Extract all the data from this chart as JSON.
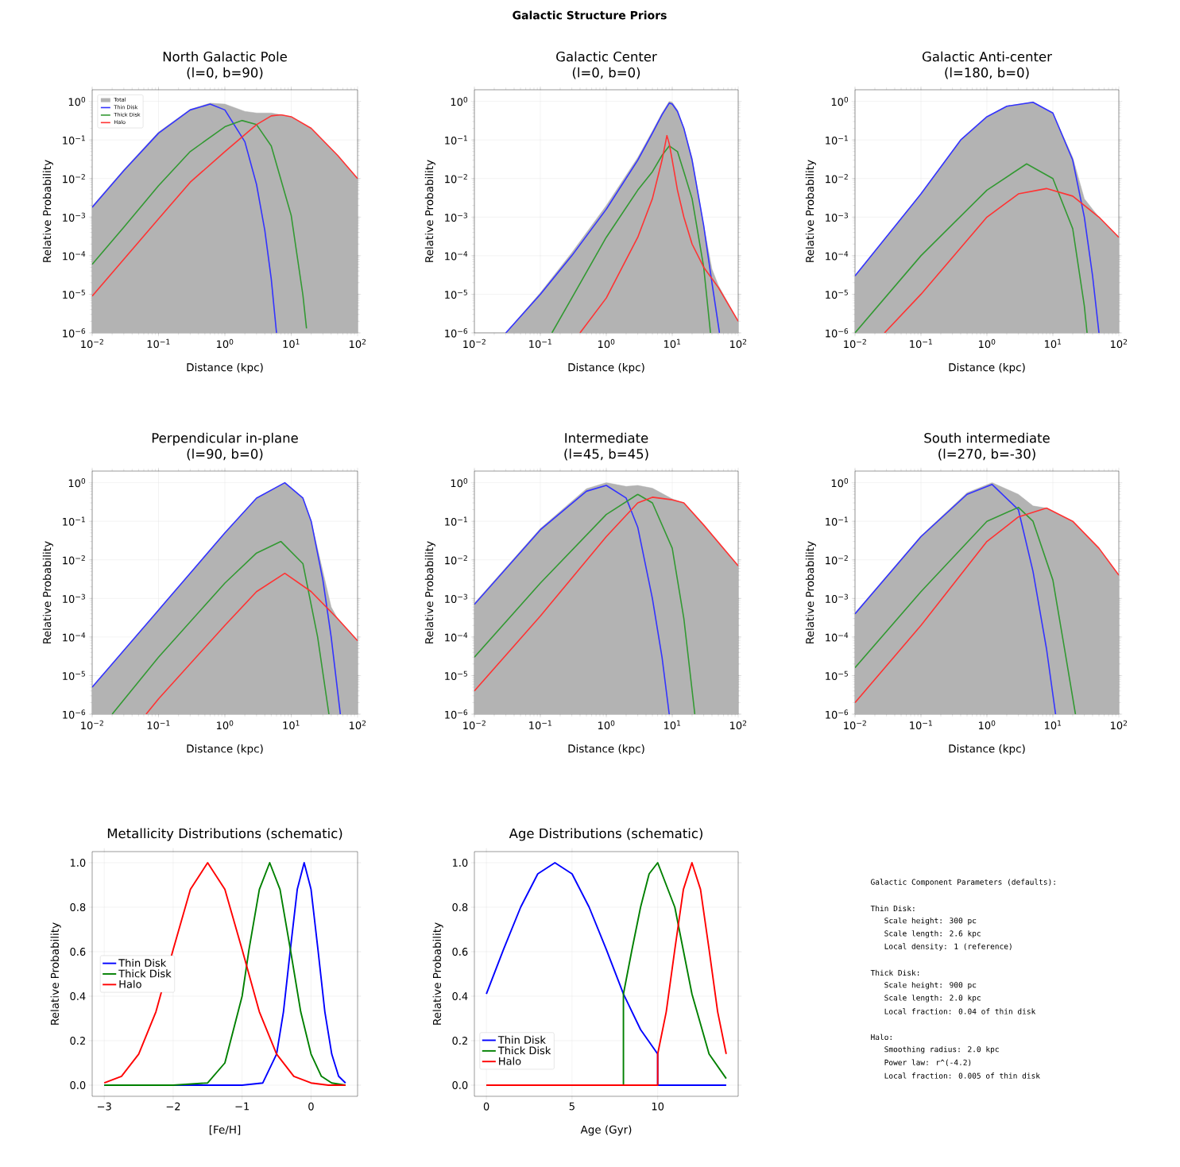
{
  "chart_data": [
    {
      "type": "other",
      "title": "Galactic Structure Priors"
    },
    {
      "type": "line",
      "title": "North Galactic Pole",
      "subtitle": "(l=0, b=90)",
      "xlabel": "Distance (kpc)",
      "ylabel": "Relative Probability",
      "log": "xy",
      "grid": true,
      "legend": "top left",
      "xlim": [
        0.01,
        100
      ],
      "ylim": [
        1e-06,
        2
      ],
      "xticks": [
        {
          "value": 0.01,
          "label": "10$^{−2}$"
        },
        {
          "value": 0.1,
          "label": "10$^{−1}$"
        },
        {
          "value": 1,
          "label": "10$^{0}$"
        },
        {
          "value": 10,
          "label": "10$^{1}$"
        },
        {
          "value": 100,
          "label": "10$^{2}$"
        }
      ],
      "yticks": [
        {
          "value": 1e-06,
          "label": "10$^{−6}$"
        },
        {
          "value": 1e-05,
          "label": "10$^{−5}$"
        },
        {
          "value": 0.0001,
          "label": "10$^{−4}$"
        },
        {
          "value": 0.001,
          "label": "10$^{−3}$"
        },
        {
          "value": 0.01,
          "label": "10$^{−2}$"
        },
        {
          "value": 0.1,
          "label": "10$^{−1}$"
        },
        {
          "value": 1,
          "label": "10$^{0}$"
        }
      ],
      "series": [
        {
          "name": "Total",
          "type": "area",
          "color": "#b3b3b3",
          "x": [
            0.01,
            0.03,
            0.1,
            0.3,
            0.6,
            1,
            2,
            3,
            5,
            7,
            10,
            20,
            50,
            100
          ],
          "values": [
            0.0019,
            0.017,
            0.16,
            0.62,
            0.9,
            0.85,
            0.55,
            0.5,
            0.5,
            0.45,
            0.4,
            0.2,
            0.04,
            0.01
          ]
        },
        {
          "name": "Thin Disk",
          "color": "#3333ff",
          "x": [
            0.01,
            0.03,
            0.1,
            0.3,
            0.6,
            1,
            2,
            3,
            4,
            5,
            6
          ],
          "values": [
            0.0018,
            0.016,
            0.15,
            0.6,
            0.85,
            0.6,
            0.09,
            0.007,
            0.00045,
            2.5e-05,
            1e-06
          ]
        },
        {
          "name": "Thick Disk",
          "color": "#339933",
          "x": [
            0.01,
            0.03,
            0.1,
            0.3,
            1,
            1.8,
            3,
            5,
            10,
            15,
            17
          ],
          "values": [
            6e-05,
            0.00055,
            0.0065,
            0.05,
            0.22,
            0.32,
            0.25,
            0.07,
            0.0011,
            9.5e-06,
            1.3e-06
          ]
        },
        {
          "name": "Halo",
          "color": "#ff3333",
          "x": [
            0.01,
            0.1,
            0.3,
            1,
            3,
            5,
            7,
            10,
            20,
            50,
            100
          ],
          "values": [
            9e-06,
            0.0009,
            0.008,
            0.05,
            0.25,
            0.42,
            0.45,
            0.4,
            0.2,
            0.04,
            0.01
          ]
        }
      ]
    },
    {
      "type": "line",
      "title": "Galactic Center",
      "subtitle": "(l=0, b=0)",
      "xlabel": "Distance (kpc)",
      "ylabel": "Relative Probability",
      "log": "xy",
      "grid": true,
      "xlim": [
        0.01,
        100
      ],
      "ylim": [
        1e-06,
        2
      ],
      "xticks": [
        {
          "value": 0.01,
          "label": "10$^{−2}$"
        },
        {
          "value": 0.1,
          "label": "10$^{−1}$"
        },
        {
          "value": 1,
          "label": "10$^{0}$"
        },
        {
          "value": 10,
          "label": "10$^{1}$"
        },
        {
          "value": 100,
          "label": "10$^{2}$"
        }
      ],
      "yticks": [
        {
          "value": 1e-06,
          "label": "10$^{−6}$"
        },
        {
          "value": 1e-05,
          "label": "10$^{−5}$"
        },
        {
          "value": 0.0001,
          "label": "10$^{−4}$"
        },
        {
          "value": 0.001,
          "label": "10$^{−3}$"
        },
        {
          "value": 0.01,
          "label": "10$^{−2}$"
        },
        {
          "value": 0.1,
          "label": "10$^{−1}$"
        },
        {
          "value": 1,
          "label": "10$^{0}$"
        }
      ],
      "series": [
        {
          "type": "area",
          "color": "#b3b3b3",
          "x": [
            0.03,
            0.1,
            0.3,
            1,
            3,
            5,
            7,
            9,
            10,
            12,
            15,
            20,
            30,
            40,
            50,
            100
          ],
          "values": [
            1e-06,
            1.1e-05,
            0.00012,
            0.002,
            0.035,
            0.17,
            0.5,
            1.0,
            0.95,
            0.6,
            0.2,
            0.035,
            0.0006,
            4.5e-05,
            1.7e-05,
            2e-06
          ]
        },
        {
          "color": "#3333ff",
          "x": [
            0.03,
            0.1,
            0.3,
            1,
            3,
            5,
            7,
            9,
            10,
            12,
            15,
            20,
            30,
            40,
            52
          ],
          "values": [
            1e-06,
            1e-05,
            0.0001,
            0.0016,
            0.03,
            0.15,
            0.45,
            0.9,
            0.85,
            0.55,
            0.2,
            0.03,
            0.0006,
            2e-05,
            1e-06
          ]
        },
        {
          "color": "#339933",
          "x": [
            0.15,
            0.3,
            1,
            3,
            5,
            7,
            9,
            12,
            15,
            20,
            30,
            38
          ],
          "values": [
            1e-06,
            8e-06,
            0.0003,
            0.005,
            0.015,
            0.04,
            0.07,
            0.05,
            0.015,
            0.003,
            5e-05,
            1e-06
          ]
        },
        {
          "color": "#ff3333",
          "x": [
            0.4,
            1,
            3,
            5,
            7,
            8.3,
            9,
            10,
            12,
            15,
            20,
            30,
            50,
            100
          ],
          "values": [
            1e-06,
            8e-06,
            0.0003,
            0.003,
            0.03,
            0.13,
            0.08,
            0.03,
            0.005,
            0.001,
            0.0002,
            5e-05,
            1.5e-05,
            2e-06
          ]
        }
      ]
    },
    {
      "type": "line",
      "title": "Galactic Anti-center",
      "subtitle": "(l=180, b=0)",
      "xlabel": "Distance (kpc)",
      "ylabel": "Relative Probability",
      "log": "xy",
      "grid": true,
      "xlim": [
        0.01,
        100
      ],
      "ylim": [
        1e-06,
        2
      ],
      "xticks": [
        {
          "value": 0.01,
          "label": "10$^{−2}$"
        },
        {
          "value": 0.1,
          "label": "10$^{−1}$"
        },
        {
          "value": 1,
          "label": "10$^{0}$"
        },
        {
          "value": 10,
          "label": "10$^{1}$"
        },
        {
          "value": 100,
          "label": "10$^{2}$"
        }
      ],
      "yticks": [
        {
          "value": 1e-06,
          "label": "10$^{−6}$"
        },
        {
          "value": 1e-05,
          "label": "10$^{−5}$"
        },
        {
          "value": 0.0001,
          "label": "10$^{−4}$"
        },
        {
          "value": 0.001,
          "label": "10$^{−3}$"
        },
        {
          "value": 0.01,
          "label": "10$^{−2}$"
        },
        {
          "value": 0.1,
          "label": "10$^{−1}$"
        },
        {
          "value": 1,
          "label": "10$^{0}$"
        }
      ],
      "series": [
        {
          "type": "area",
          "color": "#b3b3b3",
          "x": [
            0.01,
            0.1,
            0.4,
            1,
            2,
            5,
            10,
            20,
            30,
            40,
            50,
            100
          ],
          "values": [
            3e-05,
            0.004,
            0.1,
            0.4,
            0.75,
            0.97,
            0.5,
            0.035,
            0.003,
            0.0016,
            0.001,
            0.0003
          ]
        },
        {
          "color": "#3333ff",
          "x": [
            0.01,
            0.1,
            0.4,
            1,
            2,
            5,
            10,
            20,
            30,
            40,
            50
          ],
          "values": [
            3e-05,
            0.004,
            0.1,
            0.4,
            0.75,
            0.95,
            0.5,
            0.03,
            0.001,
            3e-05,
            1e-06
          ]
        },
        {
          "color": "#339933",
          "x": [
            0.01,
            0.1,
            1,
            4,
            10,
            20,
            30,
            33
          ],
          "values": [
            1e-06,
            0.0001,
            0.005,
            0.024,
            0.01,
            0.0005,
            5e-06,
            1e-06
          ]
        },
        {
          "color": "#ff3333",
          "x": [
            0.028,
            0.1,
            1,
            3,
            8,
            20,
            50,
            100
          ],
          "values": [
            1e-06,
            1e-05,
            0.001,
            0.004,
            0.0055,
            0.0035,
            0.001,
            0.0003
          ]
        }
      ]
    },
    {
      "type": "line",
      "title": "Perpendicular in-plane",
      "subtitle": "(l=90, b=0)",
      "xlabel": "Distance (kpc)",
      "ylabel": "Relative Probability",
      "log": "xy",
      "grid": true,
      "xlim": [
        0.01,
        100
      ],
      "ylim": [
        1e-06,
        2
      ],
      "xticks": [
        {
          "value": 0.01,
          "label": "10$^{−2}$"
        },
        {
          "value": 0.1,
          "label": "10$^{−1}$"
        },
        {
          "value": 1,
          "label": "10$^{0}$"
        },
        {
          "value": 10,
          "label": "10$^{1}$"
        },
        {
          "value": 100,
          "label": "10$^{2}$"
        }
      ],
      "yticks": [
        {
          "value": 1e-06,
          "label": "10$^{−6}$"
        },
        {
          "value": 1e-05,
          "label": "10$^{−5}$"
        },
        {
          "value": 0.0001,
          "label": "10$^{−4}$"
        },
        {
          "value": 0.001,
          "label": "10$^{−3}$"
        },
        {
          "value": 0.01,
          "label": "10$^{−2}$"
        },
        {
          "value": 0.1,
          "label": "10$^{−1}$"
        },
        {
          "value": 1,
          "label": "10$^{0}$"
        }
      ],
      "series": [
        {
          "type": "area",
          "color": "#b3b3b3",
          "x": [
            0.01,
            0.1,
            1,
            3,
            8,
            15,
            20,
            30,
            40,
            50,
            100
          ],
          "values": [
            5e-06,
            0.0005,
            0.05,
            0.4,
            1.0,
            0.4,
            0.1,
            0.005,
            0.0006,
            0.0003,
            8e-05
          ]
        },
        {
          "color": "#3333ff",
          "x": [
            0.01,
            0.1,
            1,
            3,
            8,
            15,
            20,
            30,
            40,
            55
          ],
          "values": [
            5e-06,
            0.0005,
            0.05,
            0.4,
            1.0,
            0.4,
            0.1,
            0.003,
            0.0001,
            1e-06
          ]
        },
        {
          "color": "#339933",
          "x": [
            0.02,
            0.1,
            1,
            3,
            7,
            15,
            25,
            37
          ],
          "values": [
            1e-06,
            3e-05,
            0.0025,
            0.015,
            0.03,
            0.008,
            0.0001,
            1e-06
          ]
        },
        {
          "color": "#ff3333",
          "x": [
            0.065,
            0.1,
            1,
            3,
            8,
            20,
            50,
            100
          ],
          "values": [
            1e-06,
            2.5e-06,
            0.0002,
            0.0015,
            0.0045,
            0.0015,
            0.0003,
            8e-05
          ]
        }
      ]
    },
    {
      "type": "line",
      "title": "Intermediate",
      "subtitle": "(l=45, b=45)",
      "xlabel": "Distance (kpc)",
      "ylabel": "Relative Probability",
      "log": "xy",
      "grid": true,
      "xlim": [
        0.01,
        100
      ],
      "ylim": [
        1e-06,
        2
      ],
      "xticks": [
        {
          "value": 0.01,
          "label": "10$^{−2}$"
        },
        {
          "value": 0.1,
          "label": "10$^{−1}$"
        },
        {
          "value": 1,
          "label": "10$^{0}$"
        },
        {
          "value": 10,
          "label": "10$^{1}$"
        },
        {
          "value": 100,
          "label": "10$^{2}$"
        }
      ],
      "yticks": [
        {
          "value": 1e-06,
          "label": "10$^{−6}$"
        },
        {
          "value": 1e-05,
          "label": "10$^{−5}$"
        },
        {
          "value": 0.0001,
          "label": "10$^{−4}$"
        },
        {
          "value": 0.001,
          "label": "10$^{−3}$"
        },
        {
          "value": 0.01,
          "label": "10$^{−2}$"
        },
        {
          "value": 0.1,
          "label": "10$^{−1}$"
        },
        {
          "value": 1,
          "label": "10$^{0}$"
        }
      ],
      "series": [
        {
          "type": "area",
          "color": "#b3b3b3",
          "x": [
            0.01,
            0.1,
            0.5,
            1,
            2,
            3,
            5,
            10,
            15,
            30,
            100
          ],
          "values": [
            0.00075,
            0.065,
            0.7,
            1.0,
            0.8,
            0.85,
            0.72,
            0.38,
            0.3,
            0.08,
            0.007
          ]
        },
        {
          "color": "#3333ff",
          "x": [
            0.01,
            0.1,
            0.5,
            1,
            2,
            3,
            5,
            7,
            9
          ],
          "values": [
            0.0007,
            0.06,
            0.6,
            0.85,
            0.4,
            0.07,
            0.001,
            3e-05,
            1e-06
          ]
        },
        {
          "color": "#339933",
          "x": [
            0.01,
            0.1,
            1,
            3,
            5,
            10,
            15,
            22
          ],
          "values": [
            3e-05,
            0.0025,
            0.15,
            0.5,
            0.3,
            0.02,
            0.0003,
            1e-06
          ]
        },
        {
          "color": "#ff3333",
          "x": [
            0.01,
            0.1,
            1,
            3,
            5,
            10,
            15,
            30,
            100
          ],
          "values": [
            4e-06,
            0.00035,
            0.04,
            0.3,
            0.42,
            0.36,
            0.3,
            0.08,
            0.007
          ]
        }
      ]
    },
    {
      "type": "line",
      "title": "South intermediate",
      "subtitle": "(l=270, b=-30)",
      "xlabel": "Distance (kpc)",
      "ylabel": "Relative Probability",
      "log": "xy",
      "grid": true,
      "xlim": [
        0.01,
        100
      ],
      "ylim": [
        1e-06,
        2
      ],
      "xticks": [
        {
          "value": 0.01,
          "label": "10$^{−2}$"
        },
        {
          "value": 0.1,
          "label": "10$^{−1}$"
        },
        {
          "value": 1,
          "label": "10$^{0}$"
        },
        {
          "value": 10,
          "label": "10$^{1}$"
        },
        {
          "value": 100,
          "label": "10$^{2}$"
        }
      ],
      "yticks": [
        {
          "value": 1e-06,
          "label": "10$^{−6}$"
        },
        {
          "value": 1e-05,
          "label": "10$^{−5}$"
        },
        {
          "value": 0.0001,
          "label": "10$^{−4}$"
        },
        {
          "value": 0.001,
          "label": "10$^{−3}$"
        },
        {
          "value": 0.01,
          "label": "10$^{−2}$"
        },
        {
          "value": 0.1,
          "label": "10$^{−1}$"
        },
        {
          "value": 1,
          "label": "10$^{0}$"
        }
      ],
      "series": [
        {
          "type": "area",
          "color": "#b3b3b3",
          "x": [
            0.01,
            0.1,
            0.5,
            1.2,
            3,
            5,
            8,
            20,
            50,
            100
          ],
          "values": [
            0.00042,
            0.042,
            0.55,
            1.0,
            0.5,
            0.25,
            0.22,
            0.1,
            0.02,
            0.004
          ]
        },
        {
          "color": "#3333ff",
          "x": [
            0.01,
            0.1,
            0.5,
            1.2,
            3,
            5,
            8,
            11
          ],
          "values": [
            0.0004,
            0.04,
            0.5,
            0.9,
            0.2,
            0.005,
            5e-05,
            1e-06
          ]
        },
        {
          "color": "#339933",
          "x": [
            0.01,
            0.1,
            1,
            3,
            5,
            10,
            15,
            22
          ],
          "values": [
            1.6e-05,
            0.0015,
            0.1,
            0.23,
            0.1,
            0.003,
            5e-05,
            1e-06
          ]
        },
        {
          "color": "#ff3333",
          "x": [
            0.01,
            0.1,
            1,
            3,
            8,
            20,
            50,
            100
          ],
          "values": [
            2e-06,
            0.0002,
            0.03,
            0.13,
            0.22,
            0.1,
            0.02,
            0.004
          ]
        }
      ]
    },
    {
      "type": "line",
      "title": "Metallicity Distributions (schematic)",
      "xlabel": "[Fe/H]",
      "ylabel": "Relative Probability",
      "grid": true,
      "legend": "left",
      "xlim": [
        -3.175,
        0.675
      ],
      "ylim": [
        -0.05,
        1.05
      ],
      "xticks": [
        {
          "value": -3,
          "label": "−3"
        },
        {
          "value": -2,
          "label": "−2"
        },
        {
          "value": -1,
          "label": "−1"
        },
        0
      ],
      "yticks": [
        {
          "value": 0,
          "label": "0.0"
        },
        0.2,
        0.4,
        0.6,
        0.8,
        {
          "value": 1,
          "label": "1.0"
        }
      ],
      "series": [
        {
          "name": "Thin Disk",
          "color": "#0000ff",
          "x": [
            -3,
            -1,
            -0.7,
            -0.5,
            -0.4,
            -0.3,
            -0.2,
            -0.1,
            0,
            0.1,
            0.2,
            0.3,
            0.4,
            0.5
          ],
          "values": [
            0,
            0,
            0.01,
            0.14,
            0.33,
            0.61,
            0.88,
            1,
            0.88,
            0.61,
            0.33,
            0.14,
            0.04,
            0.01
          ]
        },
        {
          "name": "Thick Disk",
          "color": "#008000",
          "x": [
            -3,
            -2,
            -1.5,
            -1.25,
            -1,
            -0.9,
            -0.75,
            -0.6,
            -0.45,
            -0.3,
            -0.15,
            0,
            0.15,
            0.3,
            0.5
          ],
          "values": [
            0,
            0,
            0.01,
            0.1,
            0.4,
            0.61,
            0.88,
            1,
            0.88,
            0.61,
            0.33,
            0.14,
            0.04,
            0.01,
            0
          ]
        },
        {
          "name": "Halo",
          "color": "#ff0000",
          "x": [
            -3,
            -2.75,
            -2.5,
            -2.25,
            -2,
            -1.75,
            -1.5,
            -1.25,
            -1,
            -0.75,
            -0.5,
            -0.25,
            0,
            0.25,
            0.5
          ],
          "values": [
            0.01,
            0.04,
            0.14,
            0.33,
            0.61,
            0.88,
            1,
            0.88,
            0.61,
            0.33,
            0.14,
            0.04,
            0.01,
            0,
            0
          ]
        }
      ]
    },
    {
      "type": "line",
      "title": "Age Distributions (schematic)",
      "xlabel": "Age (Gyr)",
      "ylabel": "Relative Probability",
      "grid": true,
      "legend": "bottom left",
      "xlim": [
        -0.7,
        14.7
      ],
      "ylim": [
        -0.05,
        1.05
      ],
      "xticks": [
        0,
        5,
        10
      ],
      "yticks": [
        {
          "value": 0,
          "label": "0.0"
        },
        0.2,
        0.4,
        0.6,
        0.8,
        {
          "value": 1,
          "label": "1.0"
        }
      ],
      "series": [
        {
          "name": "Thin Disk",
          "color": "#0000ff",
          "x": [
            0,
            1,
            2,
            3,
            4,
            5,
            6,
            7,
            8,
            9,
            10,
            10,
            14
          ],
          "values": [
            0.41,
            0.61,
            0.8,
            0.95,
            1,
            0.95,
            0.8,
            0.61,
            0.41,
            0.25,
            0.14,
            0,
            0
          ]
        },
        {
          "name": "Thick Disk",
          "color": "#008000",
          "x": [
            0,
            8,
            8,
            8.5,
            9,
            9.5,
            10,
            11,
            12,
            13,
            14
          ],
          "values": [
            0,
            0,
            0.41,
            0.61,
            0.8,
            0.95,
            1,
            0.8,
            0.41,
            0.14,
            0.03
          ]
        },
        {
          "name": "Halo",
          "color": "#ff0000",
          "x": [
            0,
            10,
            10,
            10.5,
            11,
            11.5,
            12,
            12.5,
            13,
            13.5,
            14
          ],
          "values": [
            0,
            0,
            0.14,
            0.33,
            0.61,
            0.88,
            1,
            0.88,
            0.61,
            0.33,
            0.14
          ]
        }
      ]
    },
    {
      "type": "other",
      "title": "Galactic Component Parameters (defaults):",
      "annotations": [
        "Thin Disk:",
        "  Scale height: 300 pc",
        "  Scale length: 2.6 kpc",
        "  Local density: 1 (reference)",
        "Thick Disk:",
        "  Scale height: 900 pc",
        "  Scale length: 2.0 kpc",
        "  Local fraction: 0.04 of thin disk",
        "Halo:",
        "  Smoothing radius: 2.0 kpc",
        "  Power law: r^(-4.2)",
        "  Local fraction: 0.005 of thin disk"
      ]
    }
  ]
}
